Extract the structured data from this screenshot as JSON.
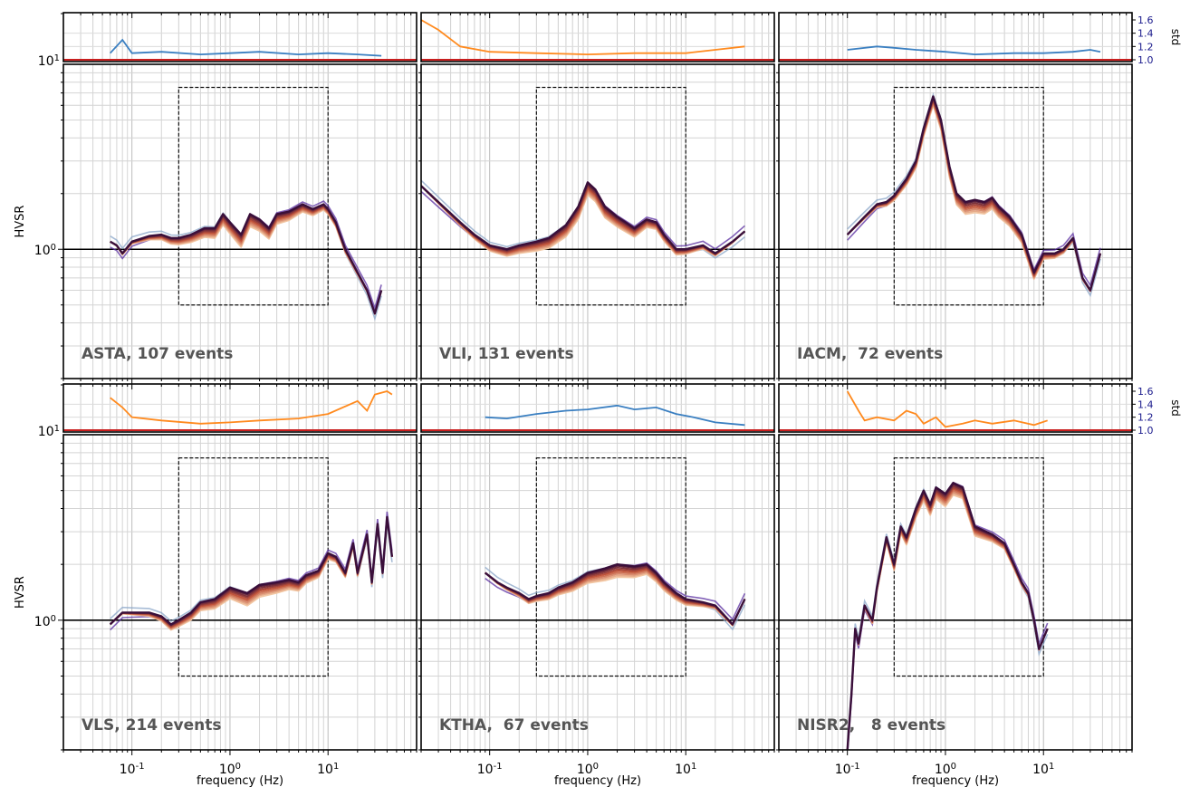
{
  "chart_data": {
    "type": "line",
    "layout": "2 rows x 3 columns of panels; each panel has a small std subplot on top and a log-log HVSR subplot below",
    "y_axis_label": "HVSR",
    "x_axis_label": "frequency (Hz)",
    "std_axis_label": "std",
    "x_scale": "log",
    "y_scale": "log",
    "xlim": [
      0.02,
      80
    ],
    "ylim": [
      0.2,
      10
    ],
    "x_tick_labels": [
      "10^-1",
      "10^0",
      "10^1"
    ],
    "y_tick_labels": [
      "10^0"
    ],
    "std_axis_ticks": [
      "1.0",
      "1.2",
      "1.4",
      "1.6"
    ],
    "std_top_left_tick": "10^1",
    "std_ylim": [
      1.0,
      1.6
    ],
    "grid": true,
    "reference_line_hvsr": 1.0,
    "reference_line_std": 1.0,
    "frequency_window": [
      0.3,
      10
    ],
    "hvsr_window_range": [
      0.5,
      7.5
    ],
    "colors": {
      "std_blue": "#3a7fc1",
      "std_orange": "#ff8a1e",
      "std_reference": "#c81e1e",
      "curves_light": "#f2c7a3",
      "curves_mid": "#c0533a",
      "curves_dark": "#3a0f3a",
      "curves_blue": "#8aa6c8",
      "curves_purple": "#5a2ea0",
      "tick_blue": "#1a1a8c"
    },
    "panels": [
      {
        "station": "ASTA",
        "events": 107,
        "label": "ASTA, 107 events",
        "std_color": "blue",
        "std_right_axis": false,
        "hvsr_line": [
          [
            0.06,
            1.1
          ],
          [
            0.07,
            1.05
          ],
          [
            0.08,
            0.95
          ],
          [
            0.1,
            1.1
          ],
          [
            0.15,
            1.18
          ],
          [
            0.2,
            1.2
          ],
          [
            0.25,
            1.15
          ],
          [
            0.3,
            1.15
          ],
          [
            0.4,
            1.2
          ],
          [
            0.55,
            1.3
          ],
          [
            0.7,
            1.3
          ],
          [
            0.85,
            1.55
          ],
          [
            1.0,
            1.4
          ],
          [
            1.3,
            1.2
          ],
          [
            1.6,
            1.55
          ],
          [
            2.0,
            1.45
          ],
          [
            2.5,
            1.3
          ],
          [
            3.0,
            1.55
          ],
          [
            4.0,
            1.6
          ],
          [
            5.5,
            1.75
          ],
          [
            7.0,
            1.65
          ],
          [
            9.0,
            1.75
          ],
          [
            10.0,
            1.65
          ],
          [
            12.0,
            1.4
          ],
          [
            15.0,
            1.0
          ],
          [
            20.0,
            0.75
          ],
          [
            25.0,
            0.6
          ],
          [
            30.0,
            0.45
          ],
          [
            35.0,
            0.6
          ]
        ],
        "std_line": [
          [
            0.06,
            1.1
          ],
          [
            0.08,
            1.3
          ],
          [
            0.1,
            1.1
          ],
          [
            0.2,
            1.12
          ],
          [
            0.5,
            1.08
          ],
          [
            1.0,
            1.1
          ],
          [
            2.0,
            1.12
          ],
          [
            5.0,
            1.08
          ],
          [
            10.0,
            1.1
          ],
          [
            20.0,
            1.08
          ],
          [
            35.0,
            1.06
          ]
        ]
      },
      {
        "station": "VLI",
        "events": 131,
        "label": "VLI, 131 events",
        "std_color": "orange",
        "std_right_axis": false,
        "hvsr_line": [
          [
            0.02,
            2.2
          ],
          [
            0.03,
            1.8
          ],
          [
            0.05,
            1.4
          ],
          [
            0.07,
            1.2
          ],
          [
            0.1,
            1.05
          ],
          [
            0.15,
            1.0
          ],
          [
            0.2,
            1.05
          ],
          [
            0.3,
            1.1
          ],
          [
            0.4,
            1.15
          ],
          [
            0.6,
            1.35
          ],
          [
            0.8,
            1.7
          ],
          [
            1.0,
            2.3
          ],
          [
            1.2,
            2.1
          ],
          [
            1.5,
            1.7
          ],
          [
            2.0,
            1.5
          ],
          [
            3.0,
            1.3
          ],
          [
            4.0,
            1.45
          ],
          [
            5.0,
            1.4
          ],
          [
            6.0,
            1.2
          ],
          [
            8.0,
            1.0
          ],
          [
            10.0,
            1.0
          ],
          [
            15.0,
            1.05
          ],
          [
            20.0,
            0.95
          ],
          [
            30.0,
            1.1
          ],
          [
            40.0,
            1.25
          ]
        ],
        "std_line": [
          [
            0.02,
            1.6
          ],
          [
            0.03,
            1.45
          ],
          [
            0.05,
            1.2
          ],
          [
            0.1,
            1.12
          ],
          [
            0.3,
            1.1
          ],
          [
            1.0,
            1.08
          ],
          [
            3.0,
            1.1
          ],
          [
            10.0,
            1.1
          ],
          [
            20.0,
            1.15
          ],
          [
            40.0,
            1.2
          ]
        ]
      },
      {
        "station": "IACM",
        "events": 72,
        "label": "IACM,  72 events",
        "std_color": "blue",
        "std_right_axis": true,
        "hvsr_line": [
          [
            0.1,
            1.2
          ],
          [
            0.15,
            1.5
          ],
          [
            0.2,
            1.75
          ],
          [
            0.25,
            1.8
          ],
          [
            0.3,
            1.95
          ],
          [
            0.4,
            2.4
          ],
          [
            0.5,
            3.0
          ],
          [
            0.6,
            4.5
          ],
          [
            0.75,
            6.7
          ],
          [
            0.9,
            5.0
          ],
          [
            1.1,
            2.8
          ],
          [
            1.3,
            2.0
          ],
          [
            1.6,
            1.8
          ],
          [
            2.0,
            1.85
          ],
          [
            2.5,
            1.8
          ],
          [
            3.0,
            1.9
          ],
          [
            3.5,
            1.7
          ],
          [
            4.5,
            1.5
          ],
          [
            6.0,
            1.2
          ],
          [
            8.0,
            0.75
          ],
          [
            10.0,
            0.95
          ],
          [
            13.0,
            0.95
          ],
          [
            16.0,
            1.0
          ],
          [
            20.0,
            1.15
          ],
          [
            25.0,
            0.7
          ],
          [
            30.0,
            0.6
          ],
          [
            38.0,
            0.95
          ]
        ],
        "std_line": [
          [
            0.1,
            1.15
          ],
          [
            0.2,
            1.2
          ],
          [
            0.3,
            1.18
          ],
          [
            0.5,
            1.15
          ],
          [
            1.0,
            1.12
          ],
          [
            2.0,
            1.08
          ],
          [
            5.0,
            1.1
          ],
          [
            10.0,
            1.1
          ],
          [
            20.0,
            1.12
          ],
          [
            30.0,
            1.15
          ],
          [
            38.0,
            1.12
          ]
        ]
      },
      {
        "station": "VLS",
        "events": 214,
        "label": "VLS, 214 events",
        "std_color": "orange",
        "std_right_axis": false,
        "hvsr_line": [
          [
            0.06,
            0.95
          ],
          [
            0.08,
            1.1
          ],
          [
            0.1,
            1.1
          ],
          [
            0.15,
            1.1
          ],
          [
            0.2,
            1.05
          ],
          [
            0.25,
            0.95
          ],
          [
            0.3,
            1.0
          ],
          [
            0.4,
            1.1
          ],
          [
            0.5,
            1.25
          ],
          [
            0.7,
            1.3
          ],
          [
            1.0,
            1.5
          ],
          [
            1.5,
            1.4
          ],
          [
            2.0,
            1.55
          ],
          [
            3.0,
            1.6
          ],
          [
            4.0,
            1.65
          ],
          [
            5.0,
            1.6
          ],
          [
            6.0,
            1.75
          ],
          [
            7.0,
            1.8
          ],
          [
            8.0,
            1.85
          ],
          [
            10.0,
            2.3
          ],
          [
            12.0,
            2.2
          ],
          [
            15.0,
            1.8
          ],
          [
            18.0,
            2.6
          ],
          [
            20.0,
            1.8
          ],
          [
            25.0,
            2.9
          ],
          [
            28.0,
            1.6
          ],
          [
            32.0,
            3.3
          ],
          [
            36.0,
            1.8
          ],
          [
            40.0,
            3.6
          ],
          [
            45.0,
            2.2
          ]
        ],
        "std_line": [
          [
            0.06,
            1.5
          ],
          [
            0.08,
            1.35
          ],
          [
            0.1,
            1.2
          ],
          [
            0.2,
            1.15
          ],
          [
            0.5,
            1.1
          ],
          [
            1.0,
            1.12
          ],
          [
            2.0,
            1.15
          ],
          [
            5.0,
            1.18
          ],
          [
            10.0,
            1.25
          ],
          [
            20.0,
            1.45
          ],
          [
            25.0,
            1.3
          ],
          [
            30.0,
            1.55
          ],
          [
            40.0,
            1.6
          ],
          [
            45.0,
            1.55
          ]
        ]
      },
      {
        "station": "KTHA",
        "events": 67,
        "label": "KTHA,  67 events",
        "std_color": "blue",
        "std_right_axis": false,
        "hvsr_line": [
          [
            0.09,
            1.8
          ],
          [
            0.12,
            1.6
          ],
          [
            0.15,
            1.5
          ],
          [
            0.2,
            1.4
          ],
          [
            0.25,
            1.3
          ],
          [
            0.3,
            1.35
          ],
          [
            0.4,
            1.4
          ],
          [
            0.5,
            1.5
          ],
          [
            0.7,
            1.6
          ],
          [
            1.0,
            1.8
          ],
          [
            1.5,
            1.9
          ],
          [
            2.0,
            2.0
          ],
          [
            3.0,
            1.95
          ],
          [
            4.0,
            2.0
          ],
          [
            5.0,
            1.8
          ],
          [
            6.0,
            1.6
          ],
          [
            8.0,
            1.4
          ],
          [
            10.0,
            1.3
          ],
          [
            15.0,
            1.25
          ],
          [
            20.0,
            1.2
          ],
          [
            30.0,
            0.95
          ],
          [
            40.0,
            1.3
          ]
        ],
        "std_line": [
          [
            0.09,
            1.2
          ],
          [
            0.15,
            1.18
          ],
          [
            0.3,
            1.25
          ],
          [
            0.6,
            1.3
          ],
          [
            1.0,
            1.32
          ],
          [
            2.0,
            1.38
          ],
          [
            3.0,
            1.32
          ],
          [
            5.0,
            1.35
          ],
          [
            8.0,
            1.25
          ],
          [
            12.0,
            1.2
          ],
          [
            20.0,
            1.12
          ],
          [
            40.0,
            1.08
          ]
        ]
      },
      {
        "station": "NISR2",
        "events": 8,
        "label": "NISR2,   8 events",
        "std_color": "orange",
        "std_right_axis": true,
        "hvsr_line": [
          [
            0.1,
            0.2
          ],
          [
            0.11,
            0.4
          ],
          [
            0.12,
            0.9
          ],
          [
            0.13,
            0.75
          ],
          [
            0.15,
            1.2
          ],
          [
            0.18,
            1.0
          ],
          [
            0.2,
            1.5
          ],
          [
            0.25,
            2.8
          ],
          [
            0.3,
            2.0
          ],
          [
            0.35,
            3.2
          ],
          [
            0.4,
            2.8
          ],
          [
            0.5,
            4.0
          ],
          [
            0.6,
            5.0
          ],
          [
            0.7,
            4.2
          ],
          [
            0.8,
            5.2
          ],
          [
            1.0,
            4.8
          ],
          [
            1.2,
            5.5
          ],
          [
            1.5,
            5.2
          ],
          [
            2.0,
            3.2
          ],
          [
            3.0,
            2.9
          ],
          [
            4.0,
            2.6
          ],
          [
            5.0,
            2.0
          ],
          [
            6.0,
            1.6
          ],
          [
            7.0,
            1.4
          ],
          [
            8.0,
            1.0
          ],
          [
            9.0,
            0.7
          ],
          [
            10.0,
            0.8
          ],
          [
            11.0,
            0.9
          ]
        ],
        "std_line": [
          [
            0.1,
            1.6
          ],
          [
            0.13,
            1.3
          ],
          [
            0.15,
            1.15
          ],
          [
            0.2,
            1.2
          ],
          [
            0.3,
            1.15
          ],
          [
            0.4,
            1.3
          ],
          [
            0.5,
            1.25
          ],
          [
            0.6,
            1.1
          ],
          [
            0.8,
            1.2
          ],
          [
            1.0,
            1.05
          ],
          [
            1.5,
            1.1
          ],
          [
            2.0,
            1.15
          ],
          [
            3.0,
            1.1
          ],
          [
            5.0,
            1.15
          ],
          [
            8.0,
            1.08
          ],
          [
            11.0,
            1.15
          ]
        ]
      }
    ]
  }
}
